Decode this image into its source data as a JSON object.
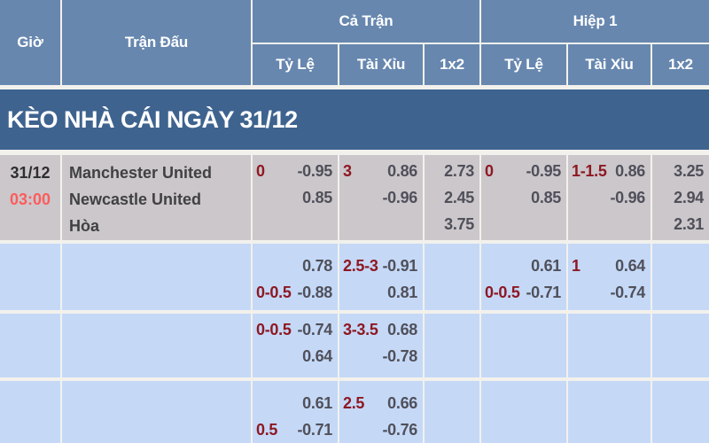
{
  "header": {
    "col_time": "Giờ",
    "col_match": "Trận Đấu",
    "group_full": "Cả Trận",
    "group_half": "Hiệp 1",
    "sub_handicap": "Tỷ Lệ",
    "sub_overunder": "Tài Xỉu",
    "sub_1x2": "1x2"
  },
  "banner": {
    "title": "KÈO NHÀ CÁI NGÀY 31/12"
  },
  "colors": {
    "header_blue": "#6787af",
    "banner_blue": "#3e638f",
    "row_gray": "#cbc7cb",
    "row_blue": "#c5d9f7",
    "handicap_maroon": "#8e1822",
    "time_red": "#fc5c5c",
    "odds_gray": "#50505a"
  },
  "rows": [
    {
      "date": "31/12",
      "time": "03:00",
      "teams": [
        "Manchester United",
        "Newcastle United",
        "Hòa"
      ],
      "full": {
        "hdp": [
          [
            "0",
            "-0.95"
          ],
          [
            "",
            "0.85"
          ]
        ],
        "ou": [
          [
            "3",
            "0.86"
          ],
          [
            "",
            "-0.96"
          ]
        ],
        "x12": [
          "2.73",
          "2.45",
          "3.75"
        ]
      },
      "half": {
        "hdp": [
          [
            "0",
            "-0.95"
          ],
          [
            "",
            "0.85"
          ]
        ],
        "ou": [
          [
            "1-1.5",
            "0.86"
          ],
          [
            "",
            "-0.96"
          ]
        ],
        "x12": [
          "3.25",
          "2.94",
          "2.31"
        ]
      }
    },
    {
      "date": "",
      "time": "",
      "teams": [
        "",
        "",
        ""
      ],
      "full": {
        "hdp": [
          [
            "",
            "0.78"
          ],
          [
            "0-0.5",
            "-0.88"
          ]
        ],
        "ou": [
          [
            "2.5-3",
            "-0.91"
          ],
          [
            "",
            "0.81"
          ]
        ],
        "x12": []
      },
      "half": {
        "hdp": [
          [
            "",
            "0.61"
          ],
          [
            "0-0.5",
            "-0.71"
          ]
        ],
        "ou": [
          [
            "1",
            "0.64"
          ],
          [
            "",
            "-0.74"
          ]
        ],
        "x12": []
      }
    },
    {
      "date": "",
      "time": "",
      "teams": [
        "",
        "",
        ""
      ],
      "full": {
        "hdp": [
          [
            "0-0.5",
            "-0.74"
          ],
          [
            "",
            "0.64"
          ]
        ],
        "ou": [
          [
            "3-3.5",
            "0.68"
          ],
          [
            "",
            "-0.78"
          ]
        ],
        "x12": []
      },
      "half": {
        "hdp": [
          [
            "",
            ""
          ],
          [
            "",
            ""
          ]
        ],
        "ou": [
          [
            "",
            ""
          ],
          [
            "",
            ""
          ]
        ],
        "x12": []
      }
    },
    {
      "date": "",
      "time": "",
      "teams": [
        "",
        "",
        ""
      ],
      "full": {
        "hdp": [
          [
            "",
            "0.61"
          ],
          [
            "0.5",
            "-0.71"
          ]
        ],
        "ou": [
          [
            "2.5",
            "0.66"
          ],
          [
            "",
            "-0.76"
          ]
        ],
        "x12": []
      },
      "half": {
        "hdp": [
          [
            "",
            ""
          ],
          [
            "",
            ""
          ]
        ],
        "ou": [
          [
            "",
            ""
          ],
          [
            "",
            ""
          ]
        ],
        "x12": []
      }
    }
  ]
}
